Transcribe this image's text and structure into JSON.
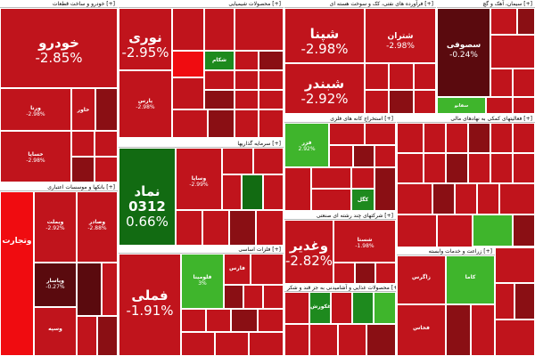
{
  "sectors": [
    {
      "id": "s1",
      "title": "خودرو و ساخت قطعات [+]"
    },
    {
      "id": "s2",
      "title": "محصولات شیمیایی [+]"
    },
    {
      "id": "s3",
      "title": "فرآورده های نفتی، کک و سوخت هسته ای [+]"
    },
    {
      "id": "s4",
      "title": "سیمان، آهک و گچ [+]"
    },
    {
      "id": "s5",
      "title": "استخراج کانه های فلزی [+]"
    },
    {
      "id": "s6",
      "title": "فعالیتهای کمکی به نهادهای مالی [+]"
    },
    {
      "id": "s7",
      "title": "بانکها و موسسات اعتباری [+]"
    },
    {
      "id": "s8",
      "title": "سرمایه گذاریها [+]"
    },
    {
      "id": "s9",
      "title": "شرکتهای چند رشته ای صنعتی [+]"
    },
    {
      "id": "s10",
      "title": "فلزات اساسی [+]"
    },
    {
      "id": "s11",
      "title": "محصولات غذایی و آشامیدنی به جز قند و شکر [+]"
    },
    {
      "id": "s12",
      "title": "زراعت و خدمات وابسته [+]"
    }
  ],
  "tiles": [
    {
      "id": "t1",
      "symbol": "خودرو",
      "pct": "-2.85%",
      "color": "red"
    },
    {
      "id": "t2",
      "symbol": "ورنا",
      "pct": "-2.98%",
      "color": "red"
    },
    {
      "id": "t3",
      "symbol": "خاور",
      "pct": "",
      "color": "red"
    },
    {
      "id": "t4",
      "symbol": "خساپا",
      "pct": "-2.98%",
      "color": "red"
    },
    {
      "id": "t5",
      "symbol": "نوری",
      "pct": "-2.95%",
      "color": "red"
    },
    {
      "id": "t6",
      "symbol": "پارس",
      "pct": "-2.98%",
      "color": "red"
    },
    {
      "id": "t7",
      "symbol": "شکام",
      "pct": "",
      "color": "green"
    },
    {
      "id": "t8",
      "symbol": "شبندر",
      "pct": "",
      "color": "red"
    },
    {
      "id": "t9",
      "symbol": "شپنا",
      "pct": "-2.98%",
      "color": "red"
    },
    {
      "id": "t10",
      "symbol": "شتران",
      "pct": "-2.98%",
      "color": "red"
    },
    {
      "id": "t11",
      "symbol": "شبندر",
      "pct": "-2.92%",
      "color": "red"
    },
    {
      "id": "t12",
      "symbol": "سصوفی",
      "pct": "-0.24%",
      "color": "dred"
    },
    {
      "id": "t13",
      "symbol": "سفانو",
      "pct": "",
      "color": "green"
    },
    {
      "id": "t14",
      "symbol": "فزر",
      "pct": "2.92%",
      "color": "lgreen"
    },
    {
      "id": "t15",
      "symbol": "کگل",
      "pct": "",
      "color": "green"
    },
    {
      "id": "t16",
      "symbol": "وبملت",
      "pct": "-2.92%",
      "color": "red"
    },
    {
      "id": "t17",
      "symbol": "وصادر",
      "pct": "-2.88%",
      "color": "red"
    },
    {
      "id": "t18",
      "symbol": "وپاسار",
      "pct": "-0.27%",
      "color": "vdred"
    },
    {
      "id": "t19",
      "symbol": "وتجارت",
      "pct": "",
      "color": "bred"
    },
    {
      "id": "t20",
      "symbol": "وسپه",
      "pct": "",
      "color": "red"
    },
    {
      "id": "t21",
      "symbol": "نماد 0312",
      "pct": "0.66%",
      "color": "dgreen"
    },
    {
      "id": "t22",
      "symbol": "وساپا",
      "pct": "-2.99%",
      "color": "red"
    },
    {
      "id": "t23",
      "symbol": "وغدیر",
      "pct": "-2.82%",
      "color": "red"
    },
    {
      "id": "t24",
      "symbol": "شستا",
      "pct": "-1.98%",
      "color": "red"
    },
    {
      "id": "t25",
      "symbol": "فملی",
      "pct": "-1.91%",
      "color": "red"
    },
    {
      "id": "t26",
      "symbol": "فولاد",
      "pct": "",
      "color": "red"
    },
    {
      "id": "t27",
      "symbol": "فلومینا",
      "pct": "3%",
      "color": "lgreen"
    },
    {
      "id": "t28",
      "symbol": "فارس",
      "pct": "",
      "color": "red"
    },
    {
      "id": "t29",
      "symbol": "غکورش",
      "pct": "",
      "color": "green"
    },
    {
      "id": "t30",
      "symbol": "زاگرس",
      "pct": "",
      "color": "red"
    },
    {
      "id": "t31",
      "symbol": "کاما",
      "pct": "",
      "color": "lgreen"
    },
    {
      "id": "t32",
      "symbol": "فخاس",
      "pct": "",
      "color": "red"
    }
  ]
}
